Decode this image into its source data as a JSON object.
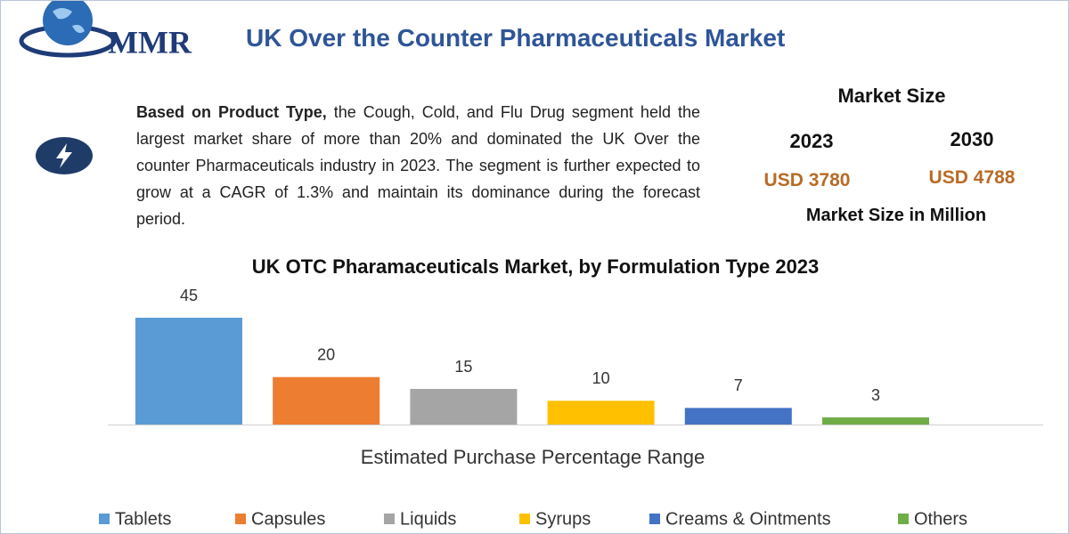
{
  "header": {
    "logo": "MMR",
    "title": "UK Over the Counter Pharmaceuticals Market"
  },
  "description": {
    "lead": "Based on Product Type,",
    "body": "the Cough, Cold, and Flu Drug segment held the largest market share of more than 20% and dominated the UK Over the counter Pharmaceuticals industry in 2023. The segment is further expected to grow at a CAGR of 1.3% and maintain its dominance during the forecast period."
  },
  "market_size": {
    "title": "Market Size",
    "years": [
      "2023",
      "2030"
    ],
    "amounts": [
      "USD 3780",
      "USD 4788"
    ],
    "note": "Market Size in Million"
  },
  "chart_data": {
    "type": "bar",
    "title": "UK OTC Pharamaceuticals Market, by Formulation Type 2023",
    "xlabel": "Estimated Purchase Percentage Range",
    "categories": [
      "Tablets",
      "Capsules",
      "Liquids",
      "Syrups",
      "Creams & Ointments",
      "Others"
    ],
    "values": [
      45,
      20,
      15,
      10,
      7,
      3
    ],
    "colors": [
      "#5b9bd5",
      "#ed7d31",
      "#a5a5a5",
      "#ffc000",
      "#4472c4",
      "#70ad47"
    ],
    "legend": "bottom"
  }
}
